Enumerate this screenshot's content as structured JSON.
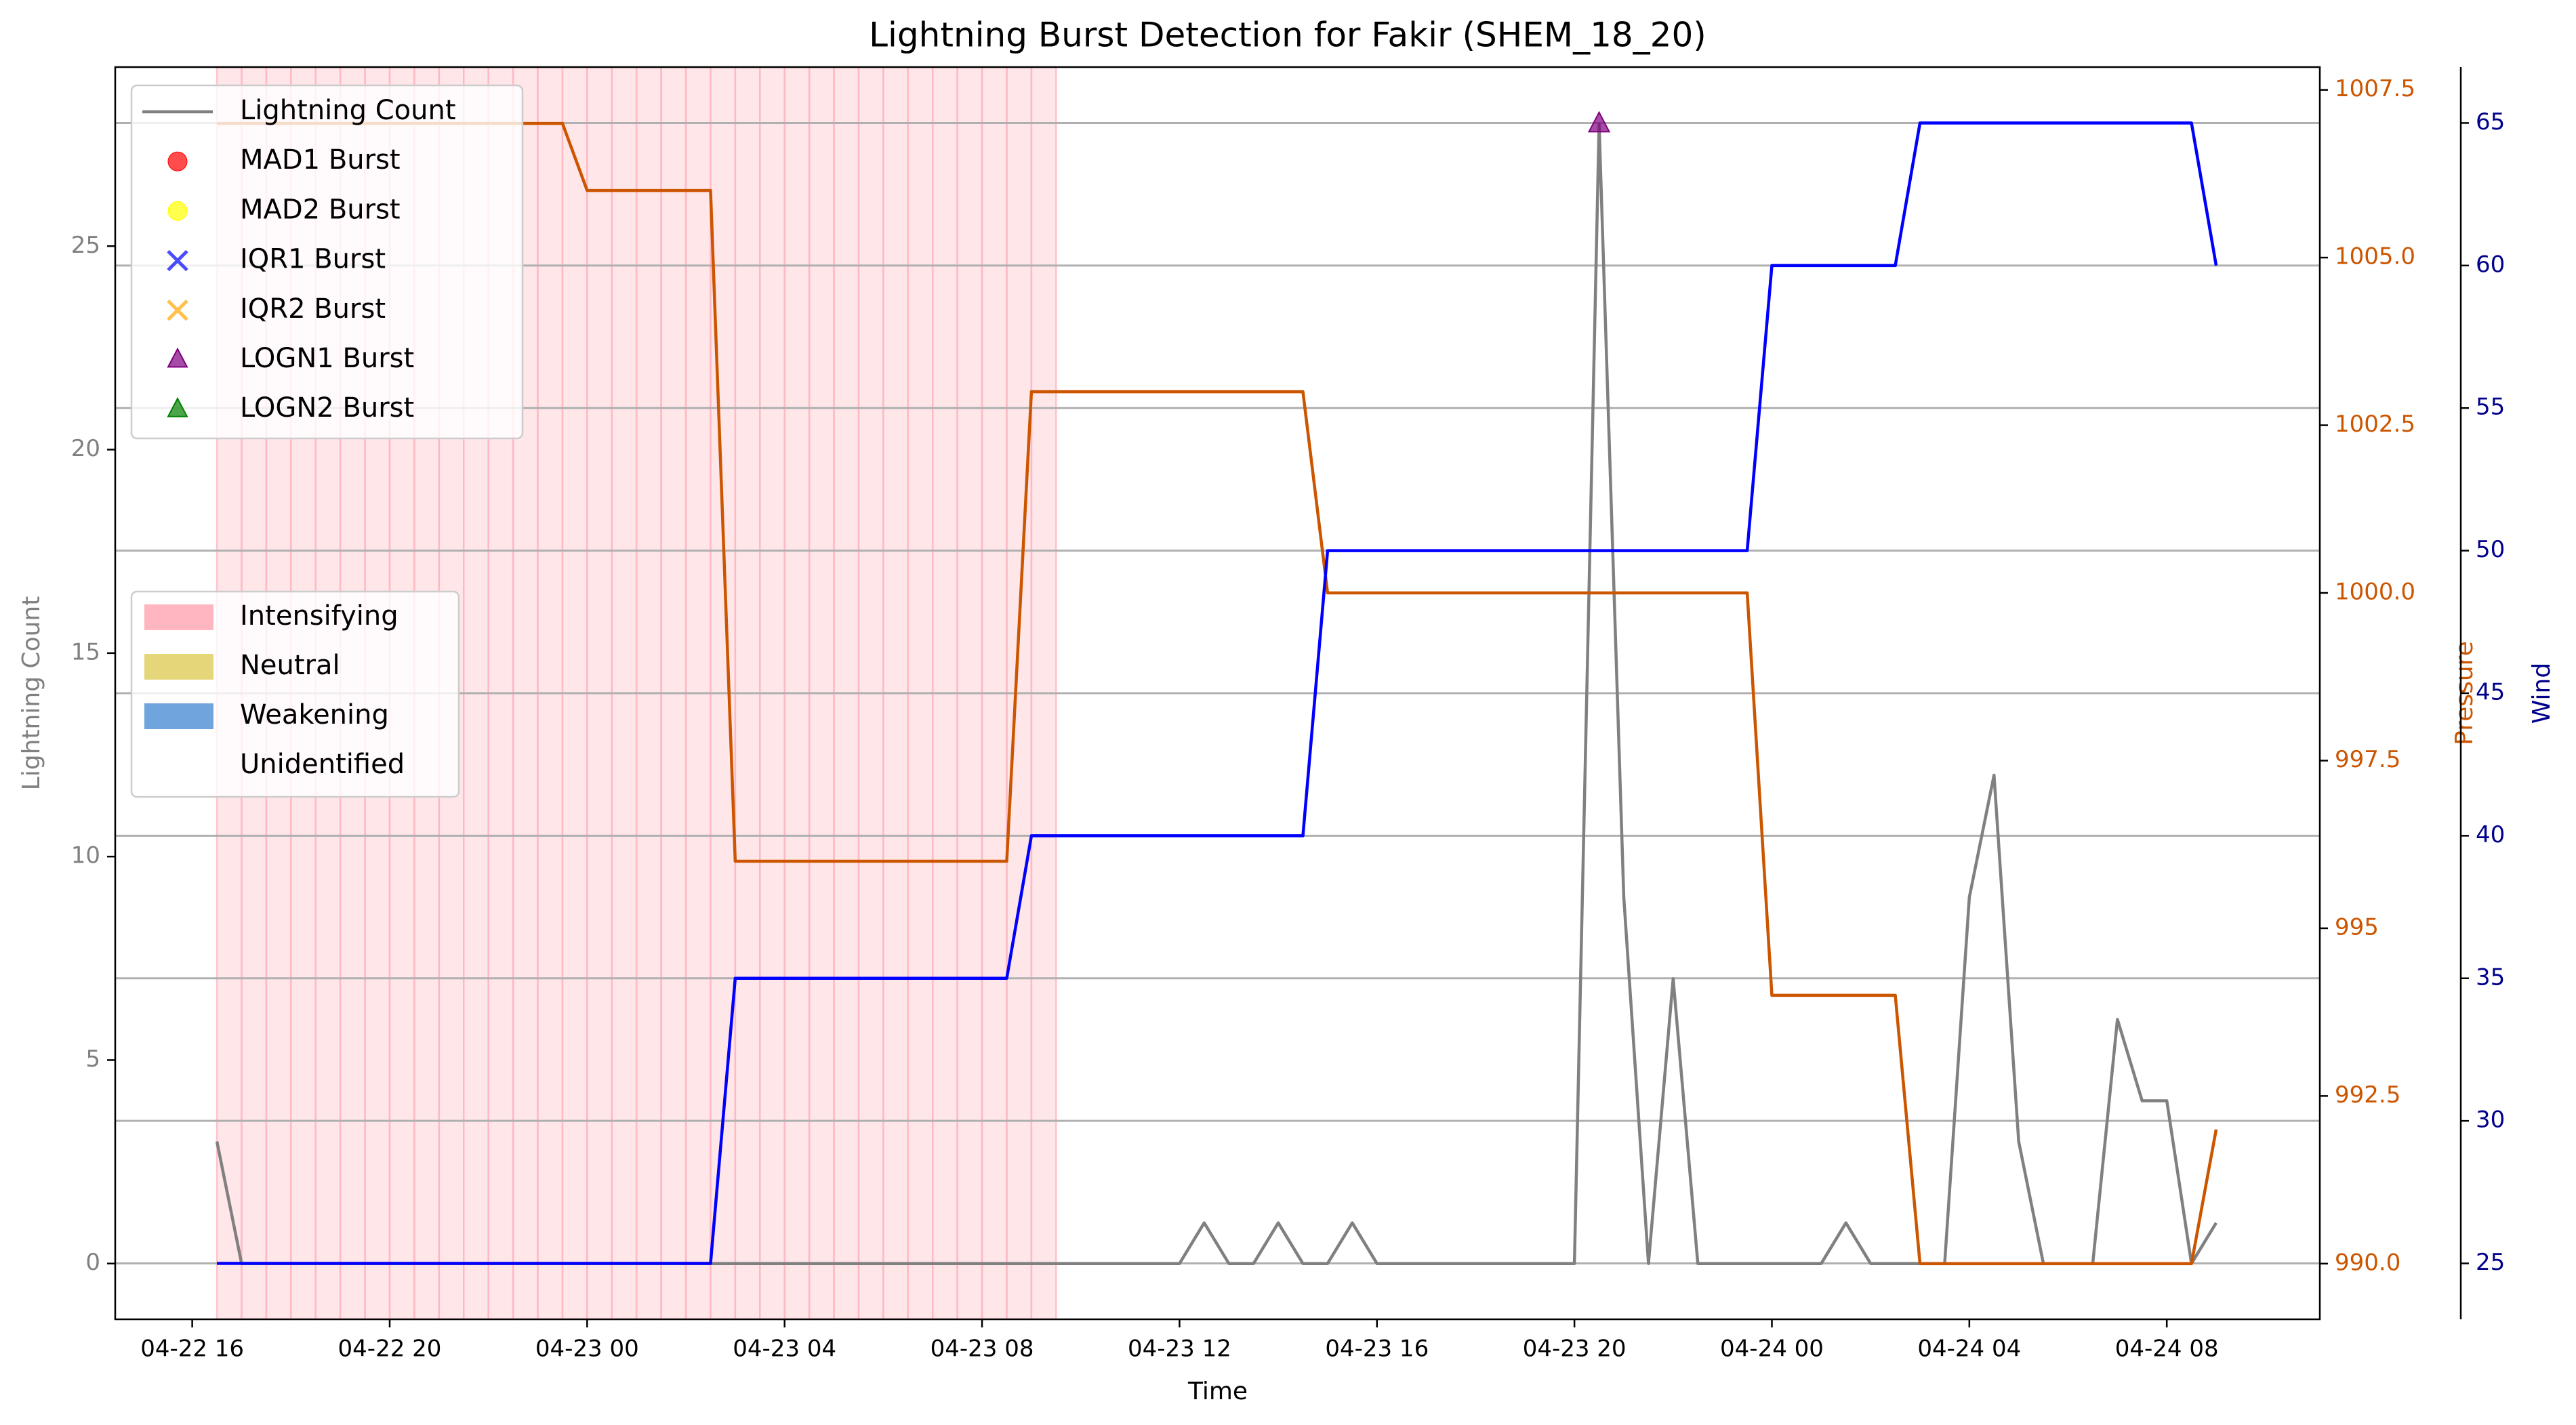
{
  "chart_data": {
    "type": "line",
    "title": "Lightning Burst Detection for Fakir (SHEM_18_20)",
    "xlabel": "Time",
    "ylabel": "Lightning Count",
    "y2label": "Pressure",
    "y3label": "Wind",
    "x": [
      16.5,
      17,
      17.5,
      18,
      18.5,
      19,
      19.5,
      20,
      20.5,
      21,
      21.5,
      22,
      22.5,
      23,
      23.5,
      24,
      24.5,
      25,
      25.5,
      26,
      26.5,
      27,
      27.5,
      28,
      28.5,
      29,
      29.5,
      30,
      30.5,
      31,
      31.5,
      32,
      32.5,
      33,
      33.5,
      34,
      34.5,
      35,
      35.5,
      36,
      36.5,
      37,
      37.5,
      38,
      38.5,
      39,
      39.5,
      40,
      40.5,
      41,
      41.5,
      42,
      42.5,
      43,
      43.5,
      44,
      44.5,
      45,
      45.5,
      46,
      46.5,
      47,
      47.5,
      48,
      48.5,
      49,
      49.5,
      50,
      50.5,
      51,
      51.5,
      52,
      52.5,
      53,
      53.5,
      54,
      54.5,
      55,
      55.5,
      56,
      56.5,
      57
    ],
    "xlim": [
      14.44,
      59.1
    ],
    "xticks": [
      {
        "value": 16,
        "label": "04-22 16"
      },
      {
        "value": 20,
        "label": "04-22 20"
      },
      {
        "value": 24,
        "label": "04-23 00"
      },
      {
        "value": 28,
        "label": "04-23 04"
      },
      {
        "value": 32,
        "label": "04-23 08"
      },
      {
        "value": 36,
        "label": "04-23 12"
      },
      {
        "value": 40,
        "label": "04-23 16"
      },
      {
        "value": 44,
        "label": "04-23 20"
      },
      {
        "value": 48,
        "label": "04-24 00"
      },
      {
        "value": 52,
        "label": "04-24 04"
      },
      {
        "value": 56,
        "label": "04-24 08"
      }
    ],
    "ylim": [
      -1.37,
      29.4
    ],
    "yticks": [
      0,
      5,
      10,
      15,
      20,
      25
    ],
    "y2lim": [
      989.17,
      1007.84
    ],
    "y2ticks": [
      {
        "value": 990,
        "label": "990.0"
      },
      992.5,
      995,
      {
        "value": 997.5,
        "label": "997.5"
      },
      {
        "value": 1000,
        "label": "1000.0"
      },
      1002.5,
      {
        "value": 1005,
        "label": "1005.0"
      },
      1007.5
    ],
    "y3lim": [
      23.04,
      66.96
    ],
    "y3ticks": [
      25,
      30,
      35,
      40,
      45,
      50,
      55,
      60,
      65
    ],
    "grid": "y3",
    "series": [
      {
        "name": "Lightning Count",
        "color": "#808080",
        "values": [
          3,
          0,
          0,
          0,
          0,
          0,
          0,
          0,
          0,
          0,
          0,
          0,
          0,
          0,
          0,
          0,
          0,
          0,
          0,
          0,
          0,
          0,
          0,
          0,
          0,
          0,
          0,
          0,
          0,
          0,
          0,
          0,
          0,
          0,
          0,
          0,
          0,
          0,
          0,
          0,
          1,
          0,
          0,
          1,
          0,
          0,
          1,
          0,
          0,
          0,
          0,
          0,
          0,
          0,
          0,
          0,
          28,
          9,
          0,
          7,
          0,
          0,
          0,
          0,
          0,
          0,
          1,
          0,
          0,
          0,
          0,
          9,
          12,
          3,
          0,
          0,
          0,
          6,
          4,
          4,
          0,
          1
        ]
      },
      {
        "color": "#cc5500",
        "axis": "y2",
        "values": [
          1007,
          1007,
          1007,
          1007,
          1007,
          1007,
          1007,
          1007,
          1007,
          1007,
          1007,
          1007,
          1007,
          1007,
          1007,
          1006,
          1006,
          1006,
          1006,
          1006,
          1006,
          996,
          996,
          996,
          996,
          996,
          996,
          996,
          996,
          996,
          996,
          996,
          996,
          1003,
          1003,
          1003,
          1003,
          1003,
          1003,
          1003,
          1003,
          1003,
          1003,
          1003,
          1003,
          1000,
          1000,
          1000,
          1000,
          1000,
          1000,
          1000,
          1000,
          1000,
          1000,
          1000,
          1000,
          1000,
          1000,
          1000,
          1000,
          1000,
          1000,
          994,
          994,
          994,
          994,
          994,
          994,
          990,
          990,
          990,
          990,
          990,
          990,
          990,
          990,
          990,
          990,
          990,
          990,
          992
        ]
      },
      {
        "color": "#0000ff",
        "axis": "y3",
        "values": [
          25,
          25,
          25,
          25,
          25,
          25,
          25,
          25,
          25,
          25,
          25,
          25,
          25,
          25,
          25,
          25,
          25,
          25,
          25,
          25,
          25,
          35,
          35,
          35,
          35,
          35,
          35,
          35,
          35,
          35,
          35,
          35,
          35,
          40,
          40,
          40,
          40,
          40,
          40,
          40,
          40,
          40,
          40,
          40,
          40,
          50,
          50,
          50,
          50,
          50,
          50,
          50,
          50,
          50,
          50,
          50,
          50,
          50,
          50,
          50,
          50,
          50,
          50,
          60,
          60,
          60,
          60,
          60,
          60,
          65,
          65,
          65,
          65,
          65,
          65,
          65,
          65,
          65,
          65,
          65,
          65,
          60
        ]
      }
    ],
    "bursts": [
      {
        "name": "MAD1 Burst",
        "color": "#ff0000",
        "marker": "o",
        "x": [],
        "values": []
      },
      {
        "name": "MAD2 Burst",
        "color": "#ffff00",
        "marker": "o",
        "x": [],
        "values": []
      },
      {
        "name": "IQR1 Burst",
        "color": "#0000ff",
        "marker": "x",
        "x": [],
        "values": []
      },
      {
        "name": "IQR2 Burst",
        "color": "#ffa500",
        "marker": "x",
        "x": [],
        "values": []
      },
      {
        "name": "LOGN1 Burst",
        "color": "#800080",
        "marker": "^",
        "x": [
          44.5
        ],
        "values": [
          28
        ]
      },
      {
        "name": "LOGN2 Burst",
        "color": "#008000",
        "marker": "^",
        "x": [],
        "values": []
      }
    ],
    "phases": [
      {
        "name": "Intensifying",
        "color": "#ffb6c1"
      },
      {
        "name": "Neutral",
        "color": "#e6d67a"
      },
      {
        "name": "Weakening",
        "color": "#6fa5dc"
      },
      {
        "name": "Unidentified",
        "color": "#ffffff"
      }
    ],
    "shaded": [
      {
        "phase": 0,
        "start": 16.5,
        "end": 33.5
      }
    ]
  }
}
